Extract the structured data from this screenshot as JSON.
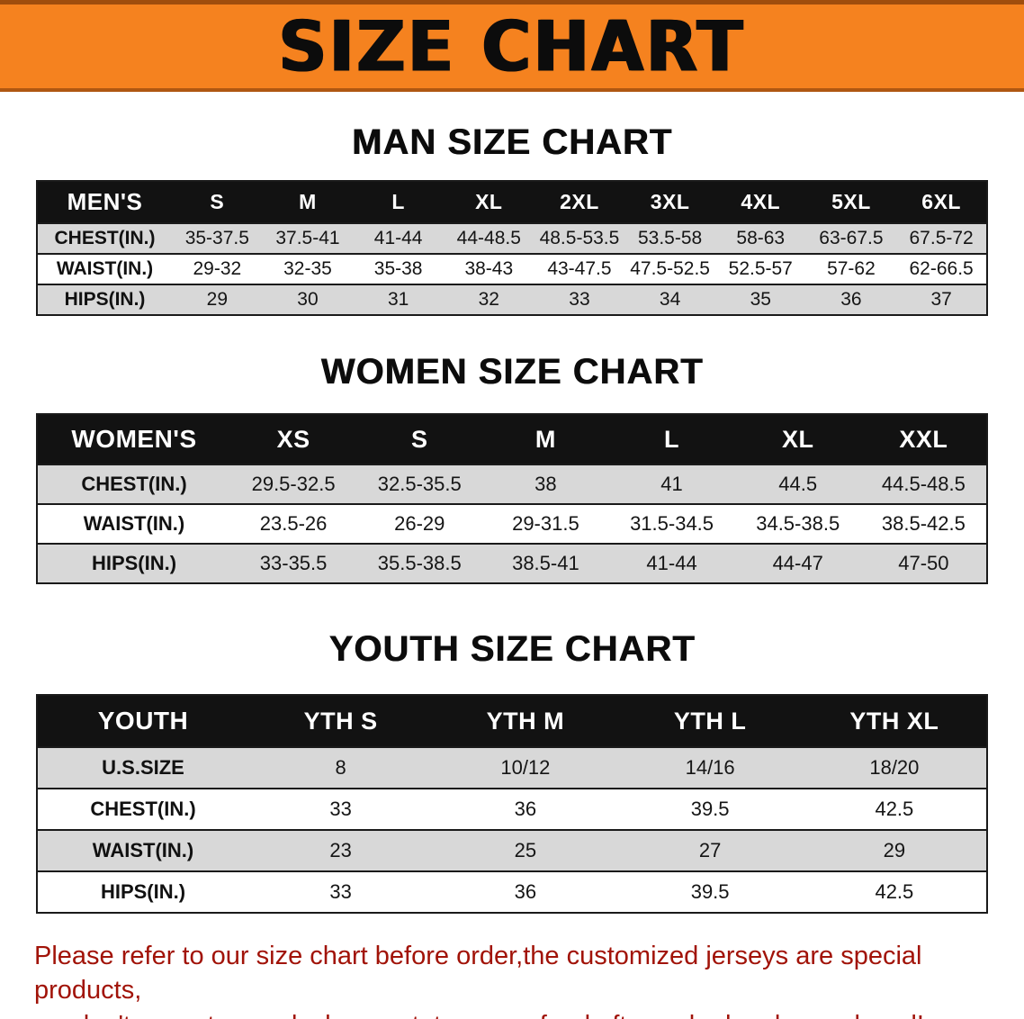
{
  "banner": {
    "title": "SIZE CHART"
  },
  "colors": {
    "banner_bg": "#f5821f",
    "header_bar": "#121212",
    "row_gray": "#d8d8d8",
    "footer_red": "#a11308"
  },
  "footer": {
    "line1": "Please refer to our size chart before order,the customized jerseys are special products,",
    "line2": "we don't accept cancel, change, teturn or refund after order has been placed!"
  },
  "chart_data": [
    {
      "type": "table",
      "title": "MAN SIZE CHART",
      "header": [
        "MEN'S",
        "S",
        "M",
        "L",
        "XL",
        "2XL",
        "3XL",
        "4XL",
        "5XL",
        "6XL"
      ],
      "rows": [
        [
          "CHEST(IN.)",
          "35-37.5",
          "37.5-41",
          "41-44",
          "44-48.5",
          "48.5-53.5",
          "53.5-58",
          "58-63",
          "63-67.5",
          "67.5-72"
        ],
        [
          "WAIST(IN.)",
          "29-32",
          "32-35",
          "35-38",
          "38-43",
          "43-47.5",
          "47.5-52.5",
          "52.5-57",
          "57-62",
          "62-66.5"
        ],
        [
          "HIPS(IN.)",
          "29",
          "30",
          "31",
          "32",
          "33",
          "34",
          "35",
          "36",
          "37"
        ]
      ]
    },
    {
      "type": "table",
      "title": "WOMEN SIZE CHART",
      "header": [
        "WOMEN'S",
        "XS",
        "S",
        "M",
        "L",
        "XL",
        "XXL"
      ],
      "rows": [
        [
          "CHEST(IN.)",
          "29.5-32.5",
          "32.5-35.5",
          "38",
          "41",
          "44.5",
          "44.5-48.5"
        ],
        [
          "WAIST(IN.)",
          "23.5-26",
          "26-29",
          "29-31.5",
          "31.5-34.5",
          "34.5-38.5",
          "38.5-42.5"
        ],
        [
          "HIPS(IN.)",
          "33-35.5",
          "35.5-38.5",
          "38.5-41",
          "41-44",
          "44-47",
          "47-50"
        ]
      ]
    },
    {
      "type": "table",
      "title": "YOUTH SIZE CHART",
      "header": [
        "YOUTH",
        "YTH S",
        "YTH M",
        "YTH L",
        "YTH XL"
      ],
      "rows": [
        [
          "U.S.SIZE",
          "8",
          "10/12",
          "14/16",
          "18/20"
        ],
        [
          "CHEST(IN.)",
          "33",
          "36",
          "39.5",
          "42.5"
        ],
        [
          "WAIST(IN.)",
          "23",
          "25",
          "27",
          "29"
        ],
        [
          "HIPS(IN.)",
          "33",
          "36",
          "39.5",
          "42.5"
        ]
      ]
    }
  ]
}
